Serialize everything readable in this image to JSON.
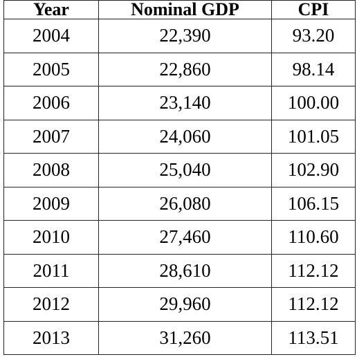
{
  "table": {
    "headers": [
      "Year",
      "Nominal GDP",
      "CPI"
    ],
    "rows": [
      [
        "2004",
        "22,390",
        "93.20"
      ],
      [
        "2005",
        "22,860",
        "98.14"
      ],
      [
        "2006",
        "23,140",
        "100.00"
      ],
      [
        "2007",
        "24,060",
        "101.05"
      ],
      [
        "2008",
        "25,040",
        "102.90"
      ],
      [
        "2009",
        "26,080",
        "106.15"
      ],
      [
        "2010",
        "27,460",
        "110.60"
      ],
      [
        "2011",
        "28,610",
        "112.12"
      ],
      [
        "2012",
        "29,960",
        "112.12"
      ],
      [
        "2013",
        "31,260",
        "113.51"
      ]
    ]
  }
}
